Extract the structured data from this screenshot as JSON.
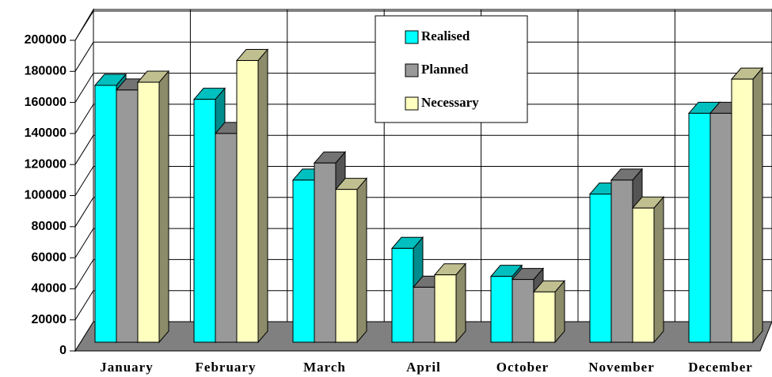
{
  "chart_data": {
    "type": "bar3d",
    "categories": [
      "January",
      "February",
      "March",
      "April",
      "October",
      "November",
      "December"
    ],
    "series": [
      {
        "name": "Realised",
        "color": "#00ffff",
        "values": [
          171000,
          162000,
          110000,
          66000,
          48000,
          101000,
          153000
        ]
      },
      {
        "name": "Planned",
        "color": "#999999",
        "values": [
          168000,
          140000,
          121000,
          41000,
          46000,
          110000,
          153000
        ]
      },
      {
        "name": "Necessary",
        "color": "#ffffc0",
        "values": [
          173000,
          187000,
          104000,
          49000,
          38000,
          92000,
          175000
        ]
      }
    ],
    "ylim": [
      0,
      200000
    ],
    "yticks": [
      0,
      20000,
      40000,
      60000,
      80000,
      100000,
      120000,
      140000,
      160000,
      180000,
      200000
    ],
    "grid": true
  }
}
